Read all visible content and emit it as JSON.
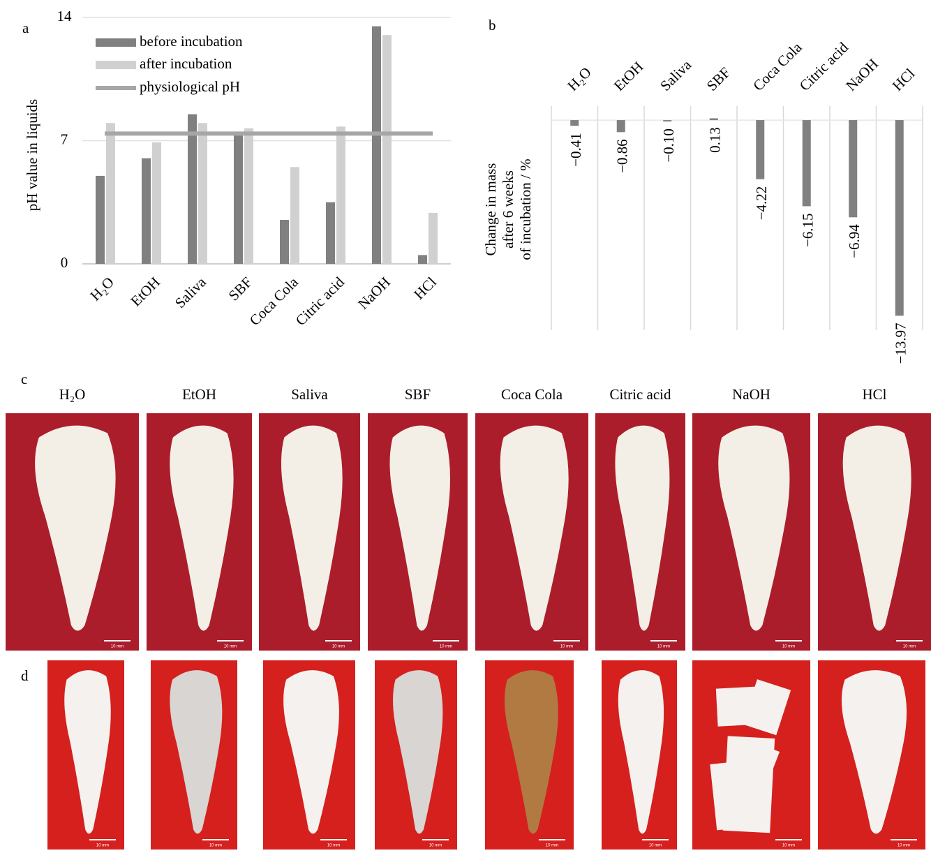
{
  "chart_data": [
    {
      "type": "bar",
      "panel": "a",
      "ylabel": "pH value in liquids",
      "categories": [
        "H₂O",
        "EtOH",
        "Saliva",
        "SBF",
        "Coca Cola",
        "Citric acid",
        "NaOH",
        "HCl"
      ],
      "series": [
        {
          "name": "before incubation",
          "color": "#808080",
          "values": [
            5.0,
            6.0,
            8.5,
            7.35,
            2.5,
            3.5,
            13.5,
            0.5
          ]
        },
        {
          "name": "after incubation",
          "color": "#d0d0d0",
          "values": [
            8.0,
            6.9,
            8.0,
            7.7,
            5.5,
            7.8,
            13.0,
            2.9
          ]
        }
      ],
      "reference_line": {
        "name": "physiological pH",
        "color": "#a6a6a6",
        "value": 7.4
      },
      "ylim": [
        0,
        14
      ],
      "yticks": [
        0,
        7,
        14
      ],
      "grid": true
    },
    {
      "type": "bar",
      "panel": "b",
      "ylabel": [
        "Change in mass",
        "after 6 weeks",
        "of incubation / %"
      ],
      "categories": [
        "H₂O",
        "EtOH",
        "Saliva",
        "SBF",
        "Coca Cola",
        "Citric acid",
        "NaOH",
        "HCl"
      ],
      "values": [
        -0.41,
        -0.86,
        -0.1,
        0.13,
        -4.22,
        -6.15,
        -6.94,
        -13.97
      ],
      "value_labels": [
        "−0.41",
        "−0.86",
        "−0.10",
        "0.13",
        "−4.22",
        "−6.15",
        "−6.94",
        "−13.97"
      ],
      "color": "#808080",
      "ylim": [
        -15,
        1
      ],
      "grid": true
    }
  ],
  "photo_panels": [
    "c",
    "d"
  ],
  "scale_bar": "10 mm"
}
